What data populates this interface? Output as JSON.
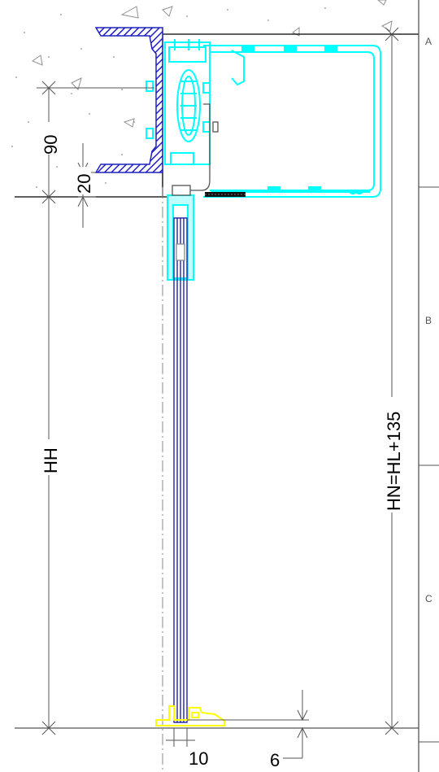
{
  "zones": {
    "a": "A",
    "b": "B",
    "c": "C"
  },
  "dimensions": {
    "d90": "90",
    "d20": "20",
    "hh": "HH",
    "hn": "HN=HL+135",
    "d10": "10",
    "d6": "6"
  },
  "colors": {
    "profile": "#00ffff",
    "channel": "#2020c0",
    "glass": "#1010a0",
    "seal": "#ffff00",
    "line": "#000000",
    "dim": "#444444",
    "concrete": "#b0b0b0"
  }
}
